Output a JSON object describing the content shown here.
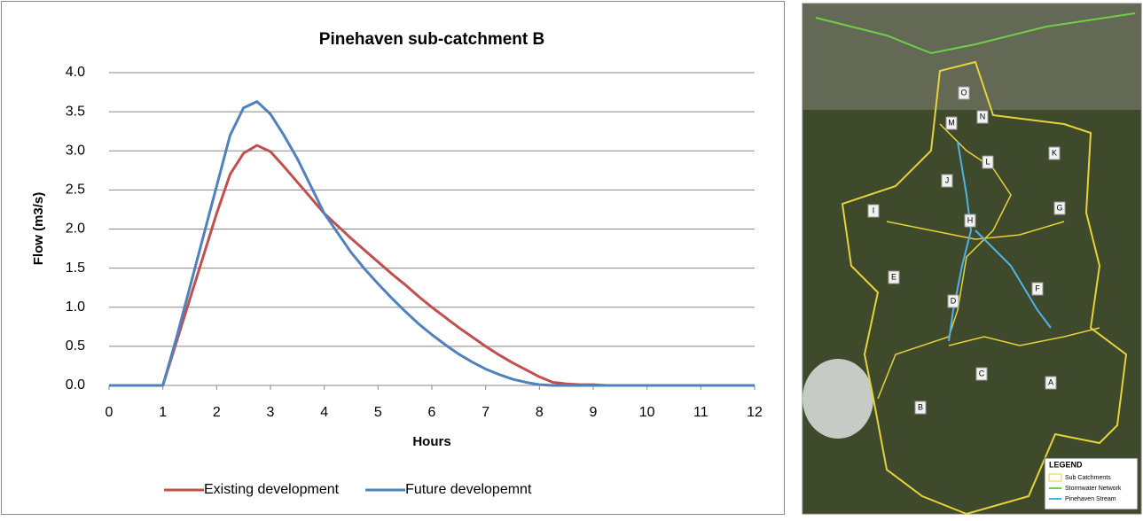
{
  "chart_data": {
    "type": "line",
    "title": "Pinehaven sub-catchment B",
    "x_label": "Hours",
    "y_label": "Flow (m3/s)",
    "x": [
      0,
      0.25,
      0.5,
      0.75,
      1,
      1.25,
      1.5,
      1.75,
      2,
      2.25,
      2.5,
      2.75,
      3,
      3.25,
      3.5,
      3.75,
      4,
      4.25,
      4.5,
      4.75,
      5,
      5.25,
      5.5,
      5.75,
      6,
      6.25,
      6.5,
      6.75,
      7,
      7.25,
      7.5,
      7.75,
      8,
      8.25,
      8.5,
      8.75,
      9,
      9.25,
      9.5,
      9.75,
      10,
      10.25,
      10.5,
      10.75,
      11,
      11.25,
      11.5,
      11.75,
      12
    ],
    "series": [
      {
        "name": "Existing development",
        "color": "#c0504d",
        "values": [
          0,
          0,
          0,
          0,
          0,
          0.55,
          1.1,
          1.65,
          2.2,
          2.7,
          2.97,
          3.07,
          2.99,
          2.8,
          2.6,
          2.4,
          2.2,
          2.04,
          1.88,
          1.73,
          1.58,
          1.43,
          1.29,
          1.14,
          1.0,
          0.87,
          0.74,
          0.62,
          0.5,
          0.39,
          0.29,
          0.2,
          0.11,
          0.04,
          0.02,
          0.01,
          0.01,
          0,
          0,
          0,
          0,
          0,
          0,
          0,
          0,
          0,
          0,
          0,
          0
        ]
      },
      {
        "name": "Future developemnt",
        "color": "#4f81bd",
        "values": [
          0,
          0,
          0,
          0,
          0,
          0.6,
          1.25,
          1.9,
          2.55,
          3.2,
          3.55,
          3.63,
          3.47,
          3.2,
          2.9,
          2.55,
          2.2,
          1.95,
          1.7,
          1.49,
          1.3,
          1.12,
          0.95,
          0.79,
          0.65,
          0.52,
          0.4,
          0.3,
          0.21,
          0.14,
          0.08,
          0.04,
          0.01,
          0,
          0,
          0,
          0,
          0,
          0,
          0,
          0,
          0,
          0,
          0,
          0,
          0,
          0,
          0,
          0
        ]
      }
    ],
    "xlim": [
      0,
      12
    ],
    "xticks": [
      0,
      1,
      2,
      3,
      4,
      5,
      6,
      7,
      8,
      9,
      10,
      11,
      12
    ],
    "ylim": [
      0,
      4
    ],
    "yticks": [
      {
        "value": 0,
        "label": "0.0"
      },
      {
        "value": 0.5,
        "label": "0.5"
      },
      {
        "value": 1,
        "label": "1.0"
      },
      {
        "value": 1.5,
        "label": "1.5"
      },
      {
        "value": 2,
        "label": "2.0"
      },
      {
        "value": 2.5,
        "label": "2.5"
      },
      {
        "value": 3,
        "label": "3.0"
      },
      {
        "value": 3.5,
        "label": "3.5"
      },
      {
        "value": 4,
        "label": "4.0"
      }
    ],
    "grid": true,
    "legend": "bottom"
  },
  "map": {
    "labels": [
      "O",
      "N",
      "M",
      "K",
      "L",
      "J",
      "I",
      "G",
      "H",
      "E",
      "F",
      "D",
      "C",
      "A",
      "B"
    ],
    "legend": {
      "title": "LEGEND",
      "items": [
        "Sub Catchments",
        "Stormwater Network",
        "Pinehaven Stream"
      ]
    }
  }
}
